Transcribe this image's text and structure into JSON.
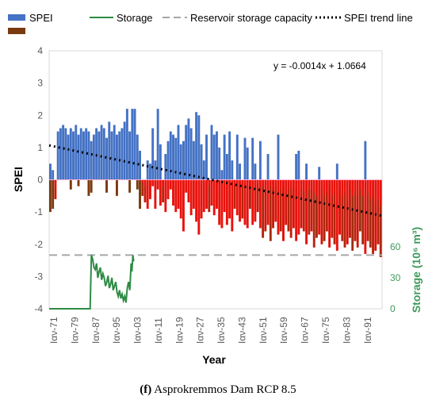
{
  "caption": {
    "label": "(f)",
    "text": "Asprokremmos Dam RCP 8.5"
  },
  "colors": {
    "spei_positive": "#4472c4",
    "spei_negative": "#e8120c",
    "spei_negative_dark": "#7a3a10",
    "storage": "#2e8b45",
    "capacity": "#a6a6a6",
    "trend": "#000000",
    "storage_axis": "#3f9a5b"
  },
  "chart_data": {
    "type": "bar",
    "legend": {
      "position": "top",
      "entries": [
        "SPEI",
        "Storage",
        "Reservoir storage capacity",
        "SPEI trend line"
      ]
    },
    "xlabel": "Year",
    "ylabel": "SPEI",
    "y2label": "Storage (10⁶ m³)",
    "ylim": [
      -4,
      4
    ],
    "yticks": [
      4,
      3,
      2,
      1,
      0,
      -1,
      -2,
      -3,
      -4
    ],
    "y2ticks": [
      60,
      30,
      0
    ],
    "y2lim": [
      0,
      60
    ],
    "x_tick_labels": [
      "Ιαν-71",
      "Ιαν-79",
      "Ιαν-87",
      "Ιαν-95",
      "Ιαν-03",
      "Ιαν-11",
      "Ιαν-19",
      "Ιαν-27",
      "Ιαν-35",
      "Ιαν-43",
      "Ιαν-51",
      "Ιαν-59",
      "Ιαν-67",
      "Ιαν-75",
      "Ιαν-83",
      "Ιαν-91"
    ],
    "annotation": "y = -0.0014x + 1.0664",
    "trend": {
      "slope": -0.0014,
      "intercept": 1.0664,
      "unit": "month index"
    },
    "reservoir_capacity": 52,
    "months_total": 1560,
    "spei": {
      "period": "annual envelope (approx.)",
      "years": [
        "1971",
        "1972",
        "1973",
        "1974",
        "1975",
        "1976",
        "1977",
        "1978",
        "1979",
        "1980",
        "1981",
        "1982",
        "1983",
        "1984",
        "1985",
        "1986",
        "1987",
        "1988",
        "1989",
        "1990",
        "1991",
        "1992",
        "1993",
        "1994",
        "1995",
        "1996",
        "1997",
        "1998",
        "1999",
        "2000",
        "2001",
        "2002",
        "2003",
        "2004",
        "2005",
        "2006",
        "2007",
        "2008",
        "2009",
        "2010",
        "2011",
        "2012",
        "2013",
        "2014",
        "2015",
        "2016",
        "2017",
        "2018",
        "2019",
        "2020",
        "2021",
        "2022",
        "2023",
        "2024",
        "2025",
        "2026",
        "2027",
        "2028",
        "2029",
        "2030",
        "2031",
        "2032",
        "2033",
        "2034",
        "2035",
        "2036",
        "2037",
        "2038",
        "2039",
        "2040",
        "2041",
        "2042",
        "2043",
        "2044",
        "2045",
        "2046",
        "2047",
        "2048",
        "2049",
        "2050",
        "2051",
        "2052",
        "2053",
        "2054",
        "2055",
        "2056",
        "2057",
        "2058",
        "2059",
        "2060",
        "2061",
        "2062",
        "2063",
        "2064",
        "2065",
        "2066",
        "2067",
        "2068",
        "2069",
        "2070",
        "2071",
        "2072",
        "2073",
        "2074",
        "2075",
        "2076",
        "2077",
        "2078",
        "2079",
        "2080",
        "2081",
        "2082",
        "2083",
        "2084",
        "2085",
        "2086",
        "2087",
        "2088",
        "2089",
        "2090",
        "2091",
        "2092",
        "2093",
        "2094",
        "2095",
        "2096",
        "2097",
        "2098",
        "2099",
        "2100"
      ],
      "max": [
        0.5,
        0.3,
        -0.2,
        1.5,
        1.6,
        1.7,
        1.6,
        1.4,
        1.6,
        1.5,
        1.7,
        1.4,
        1.6,
        1.5,
        1.6,
        1.5,
        1.2,
        1.4,
        1.6,
        1.5,
        1.7,
        1.6,
        1.3,
        1.8,
        1.5,
        1.7,
        1.4,
        1.5,
        1.6,
        1.8,
        2.2,
        1.5,
        2.2,
        2.2,
        1.4,
        0.9,
        -0.1,
        -0.2,
        0.6,
        0.5,
        1.6,
        0.6,
        2.2,
        1.1,
        -0.2,
        0.8,
        1.2,
        1.5,
        1.4,
        1.3,
        1.7,
        1.1,
        1.2,
        1.7,
        1.9,
        1.6,
        1.2,
        2.1,
        2.0,
        1.1,
        0.6,
        1.4,
        -0.2,
        1.7,
        1.4,
        1.5,
        1.0,
        0.3,
        1.4,
        0.8,
        1.5,
        0.6,
        -0.2,
        1.4,
        0.5,
        -0.2,
        1.3,
        1.0,
        -0.2,
        1.3,
        0.5,
        -0.2,
        1.2,
        -0.2,
        -0.3,
        0.8,
        -0.2,
        -0.3,
        -0.2,
        1.4,
        -0.3,
        -0.2,
        -0.4,
        -0.3,
        -0.2,
        -0.3,
        0.8,
        0.9,
        -0.3,
        -0.4,
        0.5,
        -0.3,
        -0.3,
        -0.4,
        -0.5,
        0.4,
        -0.3,
        -0.5,
        -0.4,
        -0.3,
        -0.5,
        -0.4,
        0.5,
        -0.3,
        -0.5,
        -0.4,
        -0.6,
        -0.3,
        -0.5,
        -0.4,
        -0.5,
        -0.3,
        -0.5,
        1.2,
        -0.4,
        -0.6,
        -0.5,
        -0.7,
        -0.6,
        -0.8
      ],
      "min": [
        -1.0,
        -0.9,
        -0.6,
        0.1,
        0.2,
        0.2,
        0.1,
        0.1,
        -0.3,
        0.1,
        0.2,
        -0.2,
        0.1,
        0.2,
        0.1,
        -0.5,
        -0.4,
        0.1,
        0.2,
        0.1,
        0.2,
        0.2,
        -0.4,
        0.1,
        0.2,
        0.1,
        -0.5,
        0.1,
        0.2,
        0.1,
        0.3,
        -0.4,
        0.2,
        0.1,
        -0.3,
        -0.9,
        -0.5,
        -0.7,
        -0.9,
        -0.6,
        -0.2,
        -0.9,
        -0.3,
        -0.8,
        -0.7,
        -1.0,
        -0.6,
        -0.3,
        -0.8,
        -1.0,
        -0.9,
        -1.2,
        -1.6,
        -0.4,
        -0.7,
        -1.1,
        -0.9,
        -1.3,
        -1.7,
        -1.2,
        -1.0,
        -0.9,
        -1.0,
        -0.8,
        -1.1,
        -0.9,
        -1.4,
        -1.5,
        -1.0,
        -1.4,
        -1.2,
        -1.6,
        -0.9,
        -1.1,
        -1.3,
        -1.2,
        -1.4,
        -1.5,
        -0.9,
        -1.4,
        -1.3,
        -1.0,
        -1.5,
        -1.8,
        -1.6,
        -1.4,
        -1.9,
        -1.5,
        -1.3,
        -1.7,
        -1.6,
        -1.9,
        -1.4,
        -1.6,
        -1.8,
        -1.5,
        -1.9,
        -1.7,
        -1.5,
        -1.6,
        -2.0,
        -1.7,
        -1.6,
        -2.1,
        -1.8,
        -1.7,
        -2.0,
        -1.9,
        -1.6,
        -2.1,
        -1.8,
        -2.0,
        -2.2,
        -1.7,
        -1.9,
        -2.1,
        -2.0,
        -1.8,
        -2.2,
        -1.9,
        -2.1,
        -1.6,
        -2.0,
        -2.3,
        -1.9,
        -2.1,
        -2.3,
        -2.2,
        -2.0,
        -2.4
      ]
    },
    "storage": {
      "unit": "10⁶ m³",
      "years": [
        "1971",
        "1975",
        "1980",
        "1985",
        "1986",
        "1987",
        "1987.5",
        "1988",
        "1988.5",
        "1989",
        "1989.5",
        "1990",
        "1990.5",
        "1991",
        "1991.5",
        "1992",
        "1992.5",
        "1993",
        "1993.5",
        "1994",
        "1994.5",
        "1995",
        "1995.5",
        "1996",
        "1996.5",
        "1997",
        "1997.5",
        "1998",
        "1998.5",
        "1999",
        "1999.5",
        "2000",
        "2000.5",
        "2001",
        "2001.5",
        "2002",
        "2002.5",
        "2003",
        "2003.3",
        "2003.7",
        "2004"
      ],
      "values": [
        0,
        0,
        0,
        0,
        0,
        0,
        52,
        48,
        40,
        38,
        44,
        30,
        36,
        40,
        28,
        34,
        30,
        22,
        26,
        32,
        20,
        24,
        30,
        18,
        22,
        26,
        16,
        12,
        18,
        10,
        14,
        8,
        12,
        6,
        20,
        26,
        18,
        44,
        36,
        52,
        46
      ]
    }
  }
}
